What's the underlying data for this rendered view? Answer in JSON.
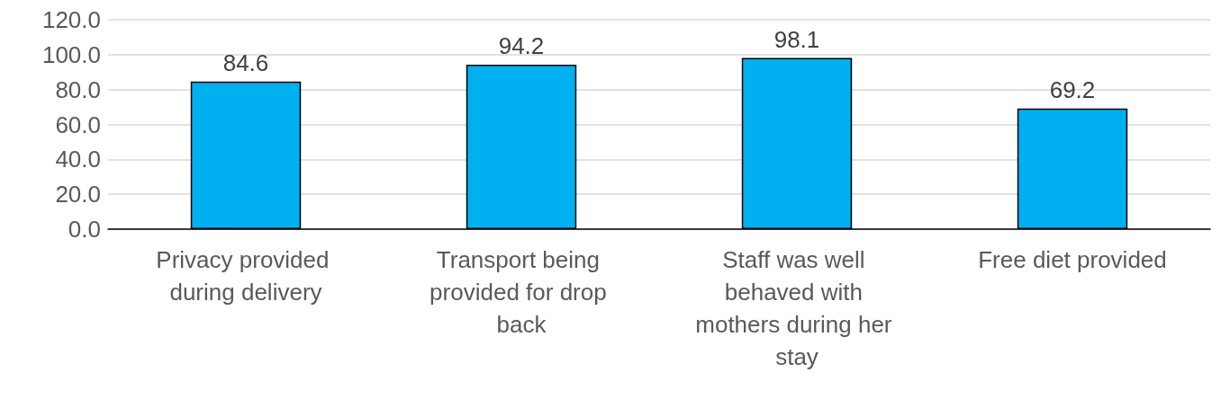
{
  "chart_data": {
    "type": "bar",
    "categories": [
      "Privacy provided during delivery",
      "Transport being provided for drop back",
      "Staff was well behaved with mothers during her stay",
      "Free diet provided"
    ],
    "values": [
      84.6,
      94.2,
      98.1,
      69.2
    ],
    "color": "#00b0f0",
    "data_labels": true,
    "grid": "y",
    "ylim": [
      0,
      120
    ],
    "yticks": [
      {
        "value": 0,
        "label": "0.0"
      },
      {
        "value": 20,
        "label": "20.0"
      },
      {
        "value": 40,
        "label": "40.0"
      },
      {
        "value": 60,
        "label": "60.0"
      },
      {
        "value": 80,
        "label": "80.0"
      },
      {
        "value": 100,
        "label": "100.0"
      },
      {
        "value": 120,
        "label": "120.0"
      }
    ]
  }
}
